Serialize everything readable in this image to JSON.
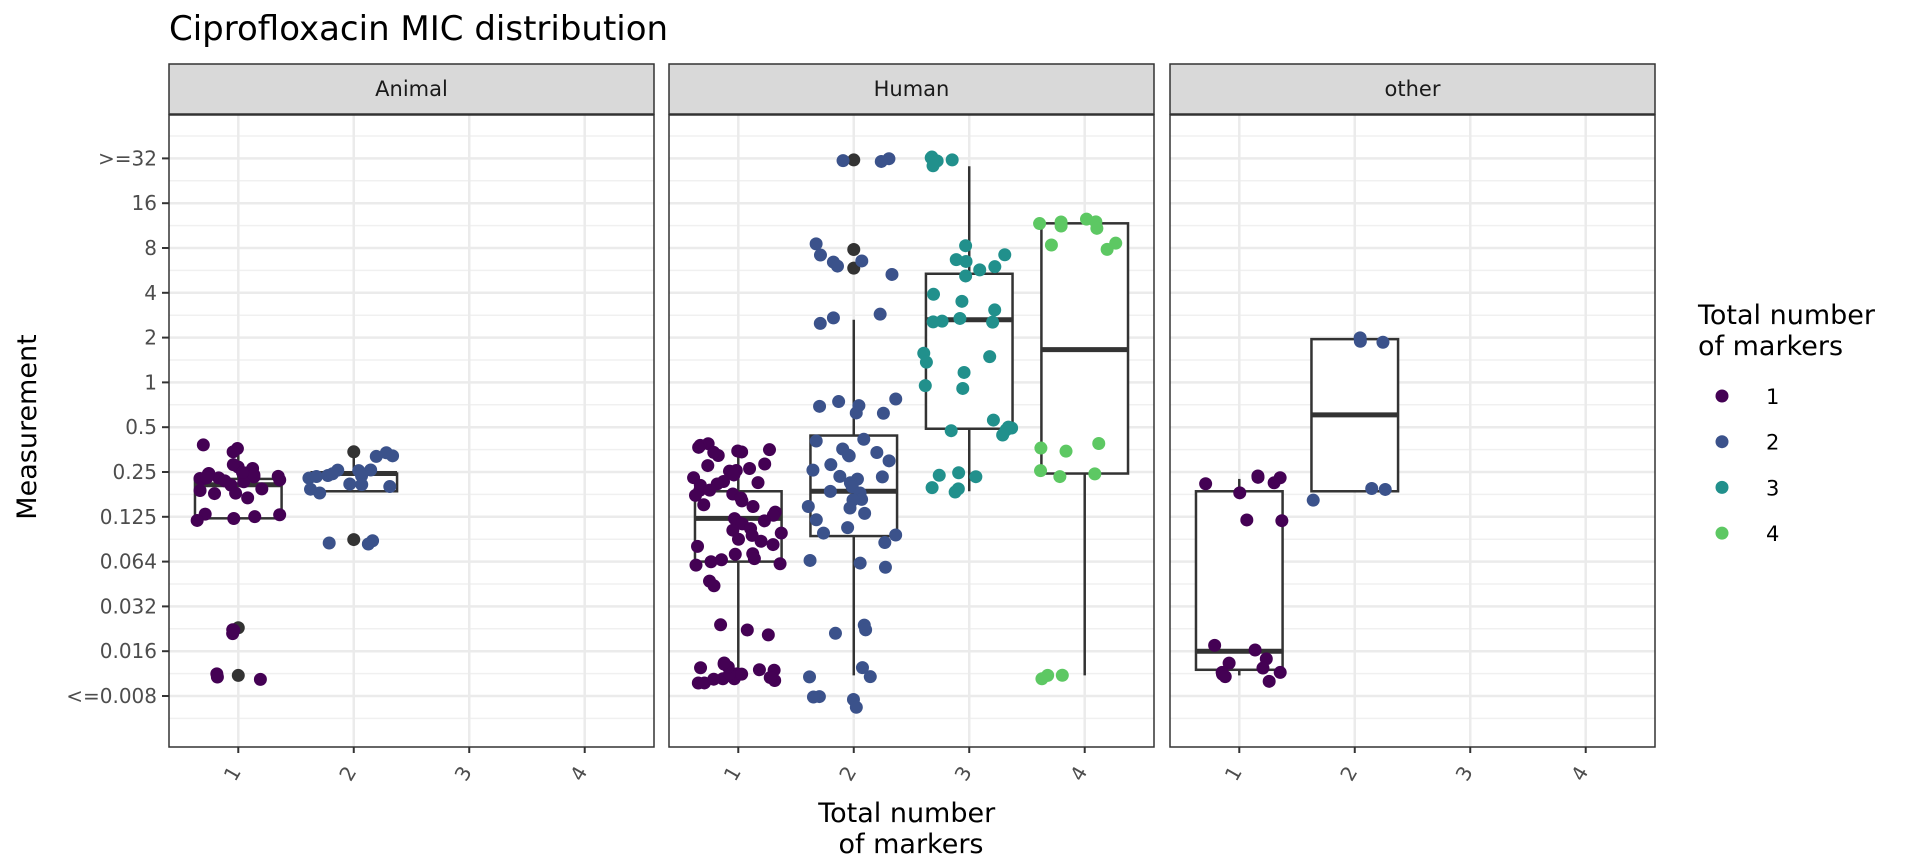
{
  "chart_data": {
    "type": "boxplot-jitter",
    "title": "Ciprofloxacin MIC distribution",
    "xlabel": "Total number\nof markers",
    "ylabel": "Measurement",
    "y_scale": "log2",
    "y_tick_labels": [
      "<=0.008",
      "0.016",
      "0.032",
      "0.064",
      "0.125",
      "0.25",
      "0.5",
      "1",
      "2",
      "4",
      "8",
      "16",
      ">=32"
    ],
    "y_tick_values": [
      0.008,
      0.016,
      0.032,
      0.064,
      0.125,
      0.25,
      0.5,
      1,
      2,
      4,
      8,
      16,
      32
    ],
    "x_categories": [
      "1",
      "2",
      "3",
      "4"
    ],
    "grid": true,
    "legend": {
      "title": "Total number\nof markers",
      "position": "right",
      "entries": [
        {
          "label": "1",
          "color": "#440154"
        },
        {
          "label": "2",
          "color": "#3B528B"
        },
        {
          "label": "3",
          "color": "#21908C"
        },
        {
          "label": "4",
          "color": "#5DC863"
        }
      ]
    },
    "outlier_color": "#333333",
    "facets": [
      {
        "name": "Animal",
        "groups": [
          {
            "category": "1",
            "box": {
              "lower_whisker": 0.125,
              "q1": 0.125,
              "median": 0.21,
              "q3": 0.23,
              "upper_whisker": 0.37
            },
            "outliers": [
              0.023,
              0.011
            ],
            "points": [
              0.37,
              0.38,
              0.35,
              0.24,
              0.25,
              0.24,
              0.26,
              0.27,
              0.23,
              0.22,
              0.24,
              0.25,
              0.23,
              0.22,
              0.21,
              0.24,
              0.26,
              0.28,
              0.25,
              0.24,
              0.22,
              0.2,
              0.19,
              0.18,
              0.17,
              0.2,
              0.13,
              0.12,
              0.12,
              0.13,
              0.13,
              0.021,
              0.023,
              0.022,
              0.011,
              0.01,
              0.011
            ]
          },
          {
            "category": "2",
            "box": {
              "lower_whisker": 0.19,
              "q1": 0.19,
              "median": 0.25,
              "q3": 0.25,
              "upper_whisker": 0.35
            },
            "outliers": [
              0.35,
              0.09
            ],
            "points": [
              0.36,
              0.34,
              0.33,
              0.25,
              0.26,
              0.24,
              0.27,
              0.26,
              0.23,
              0.24,
              0.25,
              0.22,
              0.21,
              0.19,
              0.2,
              0.19,
              0.09,
              0.087,
              0.088
            ]
          }
        ]
      },
      {
        "name": "Human",
        "groups": [
          {
            "category": "1",
            "box": {
              "lower_whisker": 0.011,
              "q1": 0.064,
              "median": 0.125,
              "q3": 0.19,
              "upper_whisker": 0.37
            },
            "outliers": [],
            "points": [
              0.38,
              0.37,
              0.36,
              0.35,
              0.34,
              0.33,
              0.37,
              0.34,
              0.28,
              0.27,
              0.26,
              0.25,
              0.26,
              0.24,
              0.25,
              0.23,
              0.22,
              0.21,
              0.2,
              0.2,
              0.19,
              0.18,
              0.18,
              0.17,
              0.17,
              0.16,
              0.15,
              0.14,
              0.13,
              0.13,
              0.12,
              0.125,
              0.12,
              0.11,
              0.1,
              0.1,
              0.095,
              0.09,
              0.09,
              0.085,
              0.08,
              0.075,
              0.07,
              0.065,
              0.064,
              0.063,
              0.062,
              0.06,
              0.048,
              0.045,
              0.025,
              0.022,
              0.02,
              0.013,
              0.012,
              0.012,
              0.011,
              0.011,
              0.01,
              0.01,
              0.0105,
              0.0098,
              0.011,
              0.012,
              0.01,
              0.0102,
              0.011,
              0.013,
              0.012,
              0.0105
            ]
          },
          {
            "category": "2",
            "box": {
              "lower_whisker": 0.011,
              "q1": 0.095,
              "median": 0.19,
              "q3": 0.45,
              "upper_whisker": 2.7
            },
            "outliers": [
              32,
              8,
              6
            ],
            "points": [
              34,
              33,
              31,
              8.5,
              7.5,
              7,
              6.5,
              6,
              5.5,
              3,
              2.8,
              2.6,
              0.8,
              0.75,
              0.72,
              0.7,
              0.65,
              0.64,
              0.42,
              0.4,
              0.38,
              0.36,
              0.34,
              0.32,
              0.3,
              0.28,
              0.26,
              0.25,
              0.24,
              0.22,
              0.21,
              0.2,
              0.19,
              0.18,
              0.17,
              0.16,
              0.15,
              0.14,
              0.13,
              0.12,
              0.11,
              0.1,
              0.095,
              0.09,
              0.06,
              0.065,
              0.064,
              0.023,
              0.022,
              0.022,
              0.012,
              0.011,
              0.0105,
              0.0078,
              0.0077,
              0.0076,
              0.007
            ]
          },
          {
            "category": "3",
            "box": {
              "lower_whisker": 0.19,
              "q1": 0.5,
              "median": 2.7,
              "q3": 5.5,
              "upper_whisker": 29
            },
            "outliers": [],
            "points": [
              33,
              32,
              31,
              30,
              29,
              33,
              8.5,
              7.5,
              7,
              6.5,
              6,
              5.8,
              5.5,
              4,
              3.5,
              3.2,
              2.7,
              2.6,
              2.5,
              2.7,
              1.6,
              1.5,
              1.4,
              1.2,
              1.0,
              0.95,
              0.55,
              0.52,
              0.5,
              0.48,
              0.5,
              0.45,
              0.26,
              0.25,
              0.24,
              0.19,
              0.2,
              0.19
            ]
          },
          {
            "category": "4",
            "box": {
              "lower_whisker": 0.011,
              "q1": 0.25,
              "median": 1.7,
              "q3": 12,
              "upper_whisker": 12
            },
            "outliers": [],
            "points": [
              12.5,
              12.5,
              12,
              12,
              12.5,
              11,
              8.5,
              8.2,
              8.3,
              0.38,
              0.36,
              0.37,
              0.25,
              0.24,
              0.24,
              0.011,
              0.011,
              0.0105
            ]
          }
        ]
      },
      {
        "name": "other",
        "groups": [
          {
            "category": "1",
            "box": {
              "lower_whisker": 0.011,
              "q1": 0.012,
              "median": 0.016,
              "q3": 0.19,
              "upper_whisker": 0.23
            },
            "outliers": [],
            "points": [
              0.24,
              0.23,
              0.22,
              0.23,
              0.21,
              0.19,
              0.125,
              0.125,
              0.017,
              0.016,
              0.014,
              0.013,
              0.012,
              0.011,
              0.011,
              0.0105,
              0.012,
              0.011
            ]
          },
          {
            "category": "2",
            "box": {
              "lower_whisker": 0.19,
              "q1": 0.19,
              "median": 0.62,
              "q3": 2.0,
              "upper_whisker": 2.0
            },
            "outliers": [],
            "points": [
              2.1,
              1.9,
              1.95,
              0.2,
              0.2,
              0.17
            ]
          }
        ]
      }
    ]
  }
}
